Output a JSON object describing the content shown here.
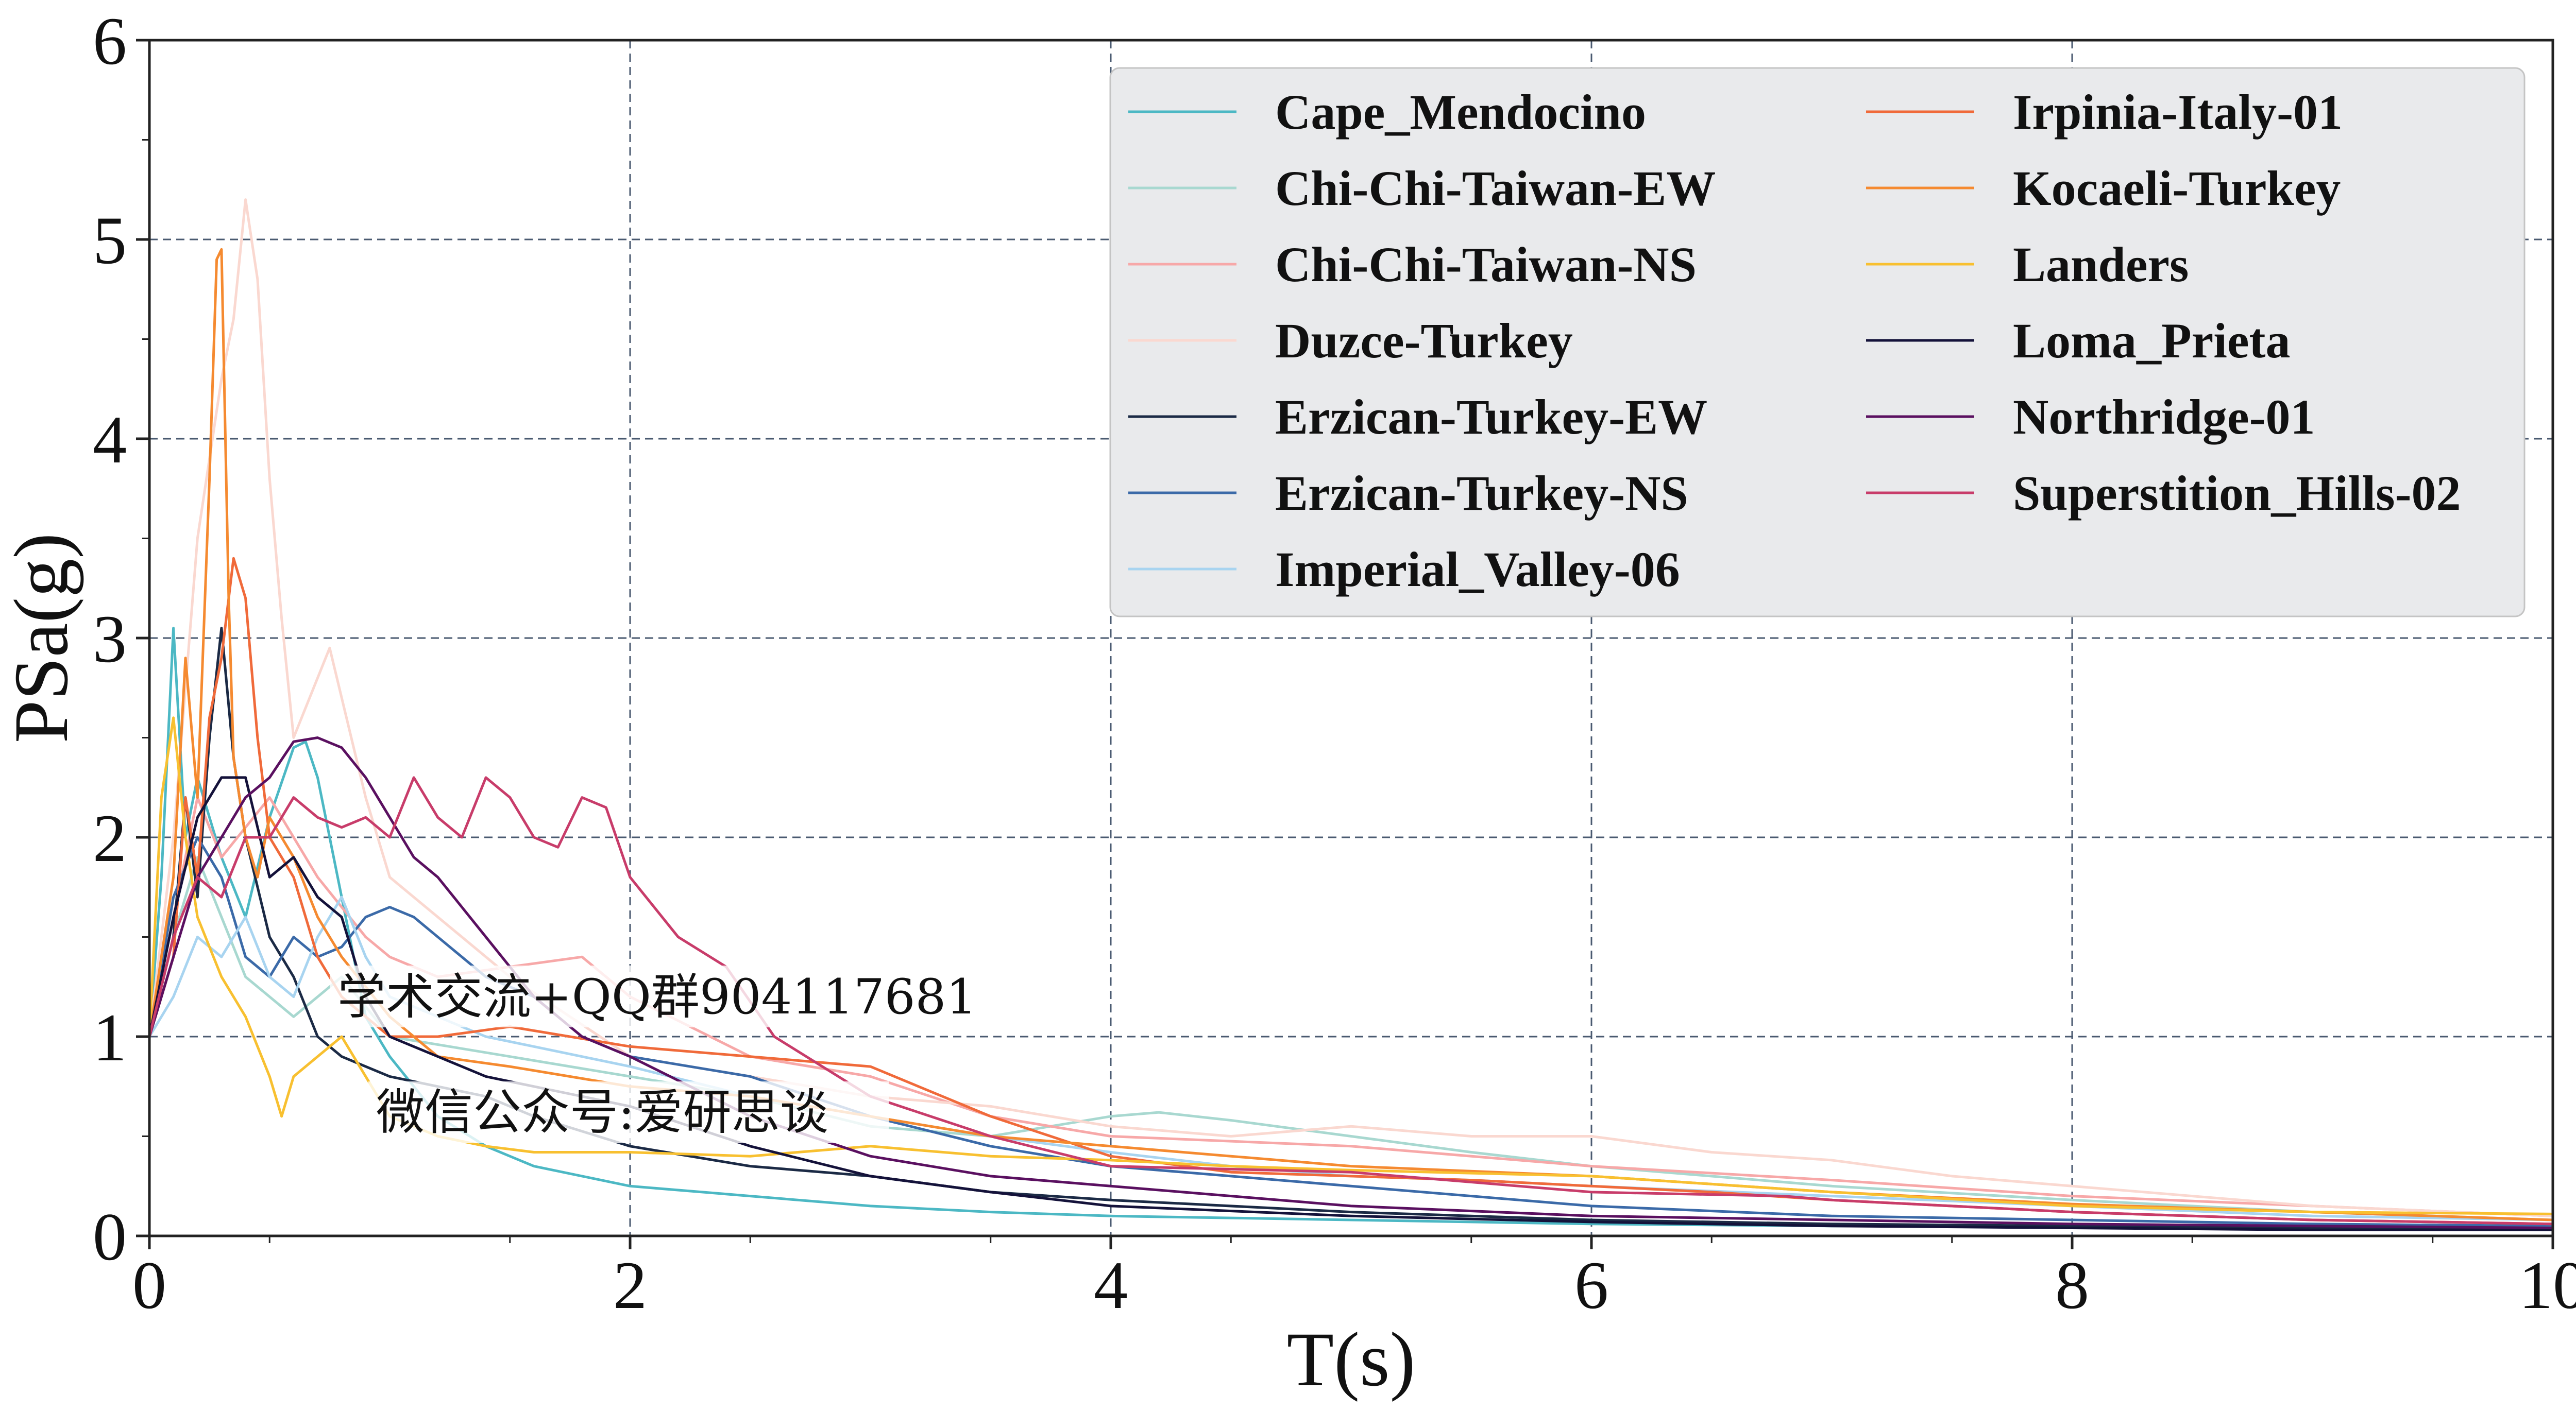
{
  "chart_data": {
    "type": "line",
    "title": "",
    "xlabel": "T(s)",
    "ylabel": "PSa(g)",
    "xlim": [
      0,
      10
    ],
    "ylim": [
      0,
      6
    ],
    "xticks": [
      "0",
      "2",
      "4",
      "6",
      "8",
      "10"
    ],
    "yticks": [
      "0",
      "1",
      "2",
      "3",
      "4",
      "5",
      "6"
    ],
    "grid": true,
    "legend_position": "top-right",
    "legend_columns": 2,
    "series": [
      {
        "name": "Cape_Mendocino",
        "color": "#4cb8c4",
        "x": [
          0,
          0.05,
          0.1,
          0.15,
          0.2,
          0.3,
          0.4,
          0.5,
          0.6,
          0.65,
          0.7,
          0.8,
          0.9,
          1.0,
          1.2,
          1.4,
          1.6,
          1.8,
          2.0,
          2.5,
          3.0,
          3.5,
          4.0,
          5.0,
          6.0,
          7.0,
          8.0,
          9.0,
          10.0
        ],
        "y": [
          1.0,
          1.8,
          3.05,
          2.0,
          2.3,
          1.9,
          1.6,
          2.1,
          2.45,
          2.48,
          2.3,
          1.7,
          1.1,
          0.9,
          0.6,
          0.45,
          0.35,
          0.3,
          0.25,
          0.2,
          0.15,
          0.12,
          0.1,
          0.08,
          0.06,
          0.05,
          0.05,
          0.04,
          0.04
        ]
      },
      {
        "name": "Chi-Chi-Taiwan-EW",
        "color": "#a8d8d0",
        "x": [
          0,
          0.1,
          0.2,
          0.3,
          0.4,
          0.5,
          0.6,
          0.8,
          1.0,
          1.5,
          2.0,
          2.5,
          3.0,
          3.5,
          4.0,
          4.2,
          4.5,
          5.0,
          5.5,
          6.0,
          7.0,
          8.0,
          9.0,
          10.0
        ],
        "y": [
          1.0,
          1.5,
          1.9,
          1.6,
          1.3,
          1.2,
          1.1,
          1.3,
          1.0,
          0.9,
          0.8,
          0.7,
          0.55,
          0.5,
          0.6,
          0.62,
          0.58,
          0.5,
          0.42,
          0.35,
          0.25,
          0.18,
          0.12,
          0.08
        ]
      },
      {
        "name": "Chi-Chi-Taiwan-NS",
        "color": "#f7a8a8",
        "x": [
          0,
          0.1,
          0.2,
          0.3,
          0.5,
          0.7,
          0.9,
          1.0,
          1.2,
          1.5,
          1.8,
          2.0,
          2.5,
          3.0,
          3.5,
          4.0,
          5.0,
          6.0,
          7.0,
          8.0,
          9.0,
          10.0
        ],
        "y": [
          1.0,
          1.6,
          2.2,
          1.9,
          2.2,
          1.8,
          1.5,
          1.4,
          1.3,
          1.35,
          1.4,
          1.2,
          0.9,
          0.8,
          0.6,
          0.5,
          0.45,
          0.35,
          0.28,
          0.2,
          0.15,
          0.1
        ]
      },
      {
        "name": "Duzce-Turkey",
        "color": "#fad8d0",
        "x": [
          0,
          0.1,
          0.2,
          0.3,
          0.35,
          0.4,
          0.45,
          0.5,
          0.55,
          0.6,
          0.7,
          0.75,
          0.8,
          0.9,
          1.0,
          1.2,
          1.5,
          2.0,
          2.5,
          3.0,
          3.5,
          4.0,
          4.5,
          5.0,
          5.5,
          6.0,
          6.5,
          7.0,
          7.5,
          8.0,
          8.5,
          9.0,
          10.0
        ],
        "y": [
          1.0,
          2.0,
          3.5,
          4.3,
          4.6,
          5.2,
          4.8,
          3.8,
          3.1,
          2.5,
          2.8,
          2.95,
          2.7,
          2.2,
          1.8,
          1.6,
          1.3,
          0.9,
          0.8,
          0.7,
          0.65,
          0.55,
          0.5,
          0.55,
          0.5,
          0.5,
          0.42,
          0.38,
          0.3,
          0.25,
          0.2,
          0.15,
          0.1
        ]
      },
      {
        "name": "Erzican-Turkey-EW",
        "color": "#1b2a45",
        "x": [
          0,
          0.1,
          0.15,
          0.2,
          0.25,
          0.3,
          0.35,
          0.4,
          0.5,
          0.6,
          0.7,
          0.8,
          1.0,
          1.2,
          1.4,
          1.6,
          2.0,
          2.5,
          3.0,
          3.5,
          4.0,
          5.0,
          6.0,
          7.0,
          8.0,
          9.0,
          10.0
        ],
        "y": [
          1.0,
          1.5,
          2.2,
          1.7,
          2.5,
          3.05,
          2.4,
          2.0,
          1.5,
          1.3,
          1.0,
          0.9,
          0.8,
          0.75,
          0.7,
          0.6,
          0.45,
          0.35,
          0.3,
          0.22,
          0.18,
          0.12,
          0.08,
          0.06,
          0.05,
          0.04,
          0.03
        ]
      },
      {
        "name": "Erzican-Turkey-NS",
        "color": "#3b6aa8",
        "x": [
          0,
          0.1,
          0.2,
          0.3,
          0.4,
          0.5,
          0.6,
          0.7,
          0.8,
          0.9,
          1.0,
          1.1,
          1.2,
          1.4,
          1.6,
          1.8,
          2.0,
          2.5,
          3.0,
          3.5,
          4.0,
          4.5,
          5.0,
          6.0,
          7.0,
          8.0,
          9.0,
          10.0
        ],
        "y": [
          1.0,
          1.7,
          2.0,
          1.8,
          1.4,
          1.3,
          1.5,
          1.4,
          1.45,
          1.6,
          1.65,
          1.6,
          1.5,
          1.3,
          1.2,
          1.0,
          0.9,
          0.8,
          0.6,
          0.45,
          0.35,
          0.3,
          0.25,
          0.15,
          0.1,
          0.08,
          0.06,
          0.05
        ]
      },
      {
        "name": "Imperial_Valley-06",
        "color": "#a8d4f0",
        "x": [
          0,
          0.1,
          0.2,
          0.3,
          0.4,
          0.5,
          0.6,
          0.7,
          0.8,
          0.9,
          1.0,
          1.2,
          1.4,
          1.6,
          1.8,
          2.0,
          2.5,
          3.0,
          3.5,
          4.0,
          4.5,
          5.0,
          5.5,
          6.0,
          7.0,
          8.0,
          9.0,
          10.0
        ],
        "y": [
          1.0,
          1.2,
          1.5,
          1.4,
          1.6,
          1.3,
          1.2,
          1.5,
          1.7,
          1.4,
          1.2,
          1.1,
          1.0,
          0.95,
          0.9,
          0.85,
          0.7,
          0.6,
          0.5,
          0.42,
          0.35,
          0.3,
          0.28,
          0.25,
          0.2,
          0.15,
          0.1,
          0.08
        ]
      },
      {
        "name": "Irpinia-Italy-01",
        "color": "#f06a3a",
        "x": [
          0,
          0.1,
          0.15,
          0.2,
          0.25,
          0.3,
          0.35,
          0.4,
          0.45,
          0.5,
          0.6,
          0.7,
          0.8,
          0.9,
          1.0,
          1.2,
          1.5,
          2.0,
          2.5,
          3.0,
          3.5,
          4.0,
          4.5,
          5.0,
          5.5,
          6.0,
          6.5,
          7.0,
          8.0,
          9.0,
          10.0
        ],
        "y": [
          1.0,
          1.4,
          2.2,
          1.8,
          2.6,
          2.9,
          3.4,
          3.2,
          2.5,
          2.0,
          1.8,
          1.4,
          1.2,
          1.1,
          1.0,
          1.0,
          1.05,
          0.95,
          0.9,
          0.85,
          0.6,
          0.4,
          0.32,
          0.3,
          0.28,
          0.25,
          0.22,
          0.18,
          0.12,
          0.08,
          0.06
        ]
      },
      {
        "name": "Kocaeli-Turkey",
        "color": "#f58a30",
        "x": [
          0,
          0.1,
          0.15,
          0.2,
          0.25,
          0.28,
          0.3,
          0.33,
          0.35,
          0.4,
          0.45,
          0.5,
          0.6,
          0.7,
          0.8,
          1.0,
          1.2,
          1.5,
          2.0,
          2.5,
          3.0,
          3.5,
          4.0,
          4.5,
          5.0,
          6.0,
          7.0,
          8.0,
          9.0,
          10.0
        ],
        "y": [
          1.0,
          1.8,
          2.9,
          2.2,
          3.8,
          4.9,
          4.95,
          3.2,
          2.4,
          2.0,
          1.8,
          2.1,
          1.9,
          1.6,
          1.4,
          1.1,
          0.9,
          0.85,
          0.75,
          0.7,
          0.6,
          0.5,
          0.45,
          0.4,
          0.35,
          0.3,
          0.22,
          0.16,
          0.12,
          0.08
        ]
      },
      {
        "name": "Landers",
        "color": "#f8c030",
        "x": [
          0,
          0.05,
          0.1,
          0.15,
          0.2,
          0.3,
          0.4,
          0.5,
          0.55,
          0.6,
          0.7,
          0.8,
          0.9,
          1.0,
          1.2,
          1.4,
          1.6,
          2.0,
          2.5,
          3.0,
          3.5,
          4.0,
          4.5,
          5.0,
          6.0,
          7.0,
          8.0,
          9.0,
          10.0
        ],
        "y": [
          1.0,
          2.2,
          2.6,
          2.0,
          1.6,
          1.3,
          1.1,
          0.8,
          0.6,
          0.8,
          0.9,
          1.0,
          0.8,
          0.6,
          0.5,
          0.45,
          0.42,
          0.42,
          0.4,
          0.45,
          0.4,
          0.38,
          0.35,
          0.33,
          0.3,
          0.22,
          0.15,
          0.12,
          0.11
        ]
      },
      {
        "name": "Loma_Prieta",
        "color": "#14123a",
        "x": [
          0,
          0.1,
          0.2,
          0.3,
          0.4,
          0.5,
          0.6,
          0.7,
          0.8,
          0.9,
          1.0,
          1.2,
          1.4,
          1.6,
          1.8,
          2.0,
          2.5,
          3.0,
          3.5,
          4.0,
          5.0,
          6.0,
          7.0,
          8.0,
          9.0,
          10.0
        ],
        "y": [
          1.0,
          1.6,
          2.1,
          2.3,
          2.3,
          1.8,
          1.9,
          1.7,
          1.6,
          1.2,
          1.0,
          0.9,
          0.8,
          0.75,
          0.7,
          0.65,
          0.45,
          0.3,
          0.22,
          0.15,
          0.1,
          0.07,
          0.05,
          0.04,
          0.03,
          0.03
        ]
      },
      {
        "name": "Northridge-01",
        "color": "#5a1060",
        "x": [
          0,
          0.1,
          0.2,
          0.3,
          0.4,
          0.5,
          0.6,
          0.7,
          0.8,
          0.9,
          1.0,
          1.1,
          1.2,
          1.4,
          1.6,
          1.8,
          2.0,
          2.5,
          3.0,
          3.5,
          4.0,
          5.0,
          6.0,
          7.0,
          8.0,
          9.0,
          10.0
        ],
        "y": [
          1.0,
          1.4,
          1.8,
          2.0,
          2.2,
          2.3,
          2.48,
          2.5,
          2.45,
          2.3,
          2.1,
          1.9,
          1.8,
          1.5,
          1.2,
          1.0,
          0.9,
          0.6,
          0.4,
          0.3,
          0.25,
          0.15,
          0.1,
          0.08,
          0.06,
          0.05,
          0.04
        ]
      },
      {
        "name": "Superstition_Hills-02",
        "color": "#c83c6a",
        "x": [
          0,
          0.1,
          0.2,
          0.3,
          0.4,
          0.5,
          0.6,
          0.7,
          0.8,
          0.9,
          1.0,
          1.1,
          1.2,
          1.3,
          1.4,
          1.5,
          1.6,
          1.7,
          1.8,
          1.9,
          2.0,
          2.2,
          2.4,
          2.6,
          2.8,
          3.0,
          3.5,
          4.0,
          5.0,
          6.0,
          6.8,
          7.0,
          8.0,
          9.0,
          10.0
        ],
        "y": [
          1.0,
          1.5,
          1.8,
          1.7,
          2.0,
          2.0,
          2.2,
          2.1,
          2.05,
          2.1,
          2.0,
          2.3,
          2.1,
          2.0,
          2.3,
          2.2,
          2.0,
          1.95,
          2.2,
          2.15,
          1.8,
          1.5,
          1.35,
          1.0,
          0.85,
          0.7,
          0.5,
          0.35,
          0.32,
          0.22,
          0.2,
          0.18,
          0.12,
          0.08,
          0.06
        ]
      }
    ]
  },
  "watermark": {
    "line1": "学术交流+QQ群904117681",
    "line2": "微信公众号:爱研思谈"
  }
}
